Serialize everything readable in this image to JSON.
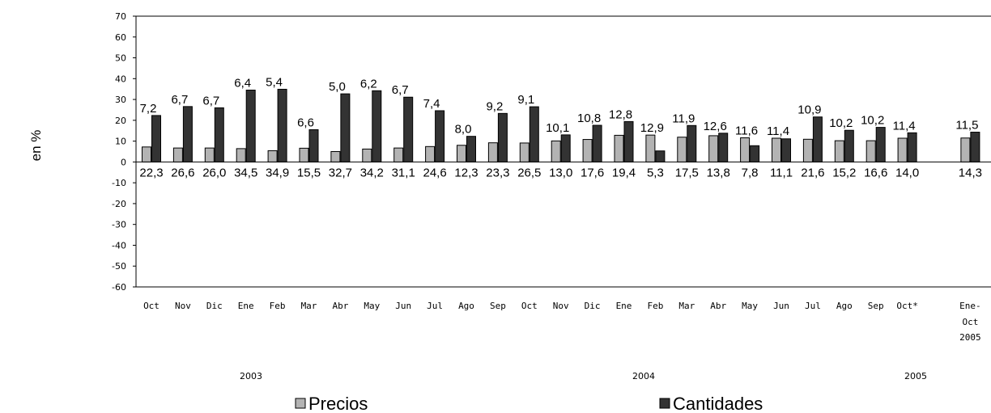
{
  "chart_data": {
    "type": "bar",
    "ylabel": "en %",
    "ylim": [
      -60,
      70
    ],
    "yticks": [
      70,
      60,
      50,
      40,
      30,
      20,
      10,
      0,
      -10,
      -20,
      -30,
      -40,
      -50,
      -60
    ],
    "categories": [
      "Oct",
      "Nov",
      "Dic",
      "Ene",
      "Feb",
      "Mar",
      "Abr",
      "May",
      "Jun",
      "Jul",
      "Ago",
      "Sep",
      "Oct",
      "Nov",
      "Dic",
      "Ene",
      "Feb",
      "Mar",
      "Abr",
      "May",
      "Jun",
      "Jul",
      "Ago",
      "Sep",
      "Oct*",
      "",
      "Ene-"
    ],
    "extra_category_lines": {
      "26": [
        "Oct",
        "2005"
      ]
    },
    "years": [
      "2003",
      "2004",
      "2005"
    ],
    "series": [
      {
        "name": "Precios",
        "color": "#b3b3b3",
        "values": [
          7.2,
          6.7,
          6.7,
          6.4,
          5.4,
          6.6,
          5.0,
          6.2,
          6.7,
          7.4,
          8.0,
          9.2,
          9.1,
          10.1,
          10.8,
          12.8,
          12.9,
          11.9,
          12.6,
          11.6,
          11.4,
          10.9,
          10.2,
          10.2,
          11.4,
          null,
          11.5
        ],
        "labels": [
          "7,2",
          "6,7",
          "6,7",
          "6,4",
          "5,4",
          "6,6",
          "5,0",
          "6,2",
          "6,7",
          "7,4",
          "8,0",
          "9,2",
          "9,1",
          "10,1",
          "10,8",
          "12,8",
          "12,9",
          "11,9",
          "12,6",
          "11,6",
          "11,4",
          "10,9",
          "10,2",
          "10,2",
          "11,4",
          "",
          "11,5"
        ]
      },
      {
        "name": "Cantidades",
        "color": "#333333",
        "values": [
          22.3,
          26.6,
          26.0,
          34.5,
          34.9,
          15.5,
          32.7,
          34.2,
          31.1,
          24.6,
          12.3,
          23.3,
          26.5,
          13.0,
          17.6,
          19.4,
          5.3,
          17.5,
          13.8,
          7.8,
          11.1,
          21.6,
          15.2,
          16.6,
          14.0,
          null,
          14.3
        ],
        "labels": [
          "22,3",
          "26,6",
          "26,0",
          "34,5",
          "34,9",
          "15,5",
          "32,7",
          "34,2",
          "31,1",
          "24,6",
          "12,3",
          "23,3",
          "26,5",
          "13,0",
          "17,6",
          "19,4",
          "5,3",
          "17,5",
          "13,8",
          "7,8",
          "11,1",
          "21,6",
          "15,2",
          "16,6",
          "14,0",
          "",
          "14,3"
        ]
      }
    ],
    "legend": {
      "placement": "bottom"
    },
    "grid": false
  }
}
